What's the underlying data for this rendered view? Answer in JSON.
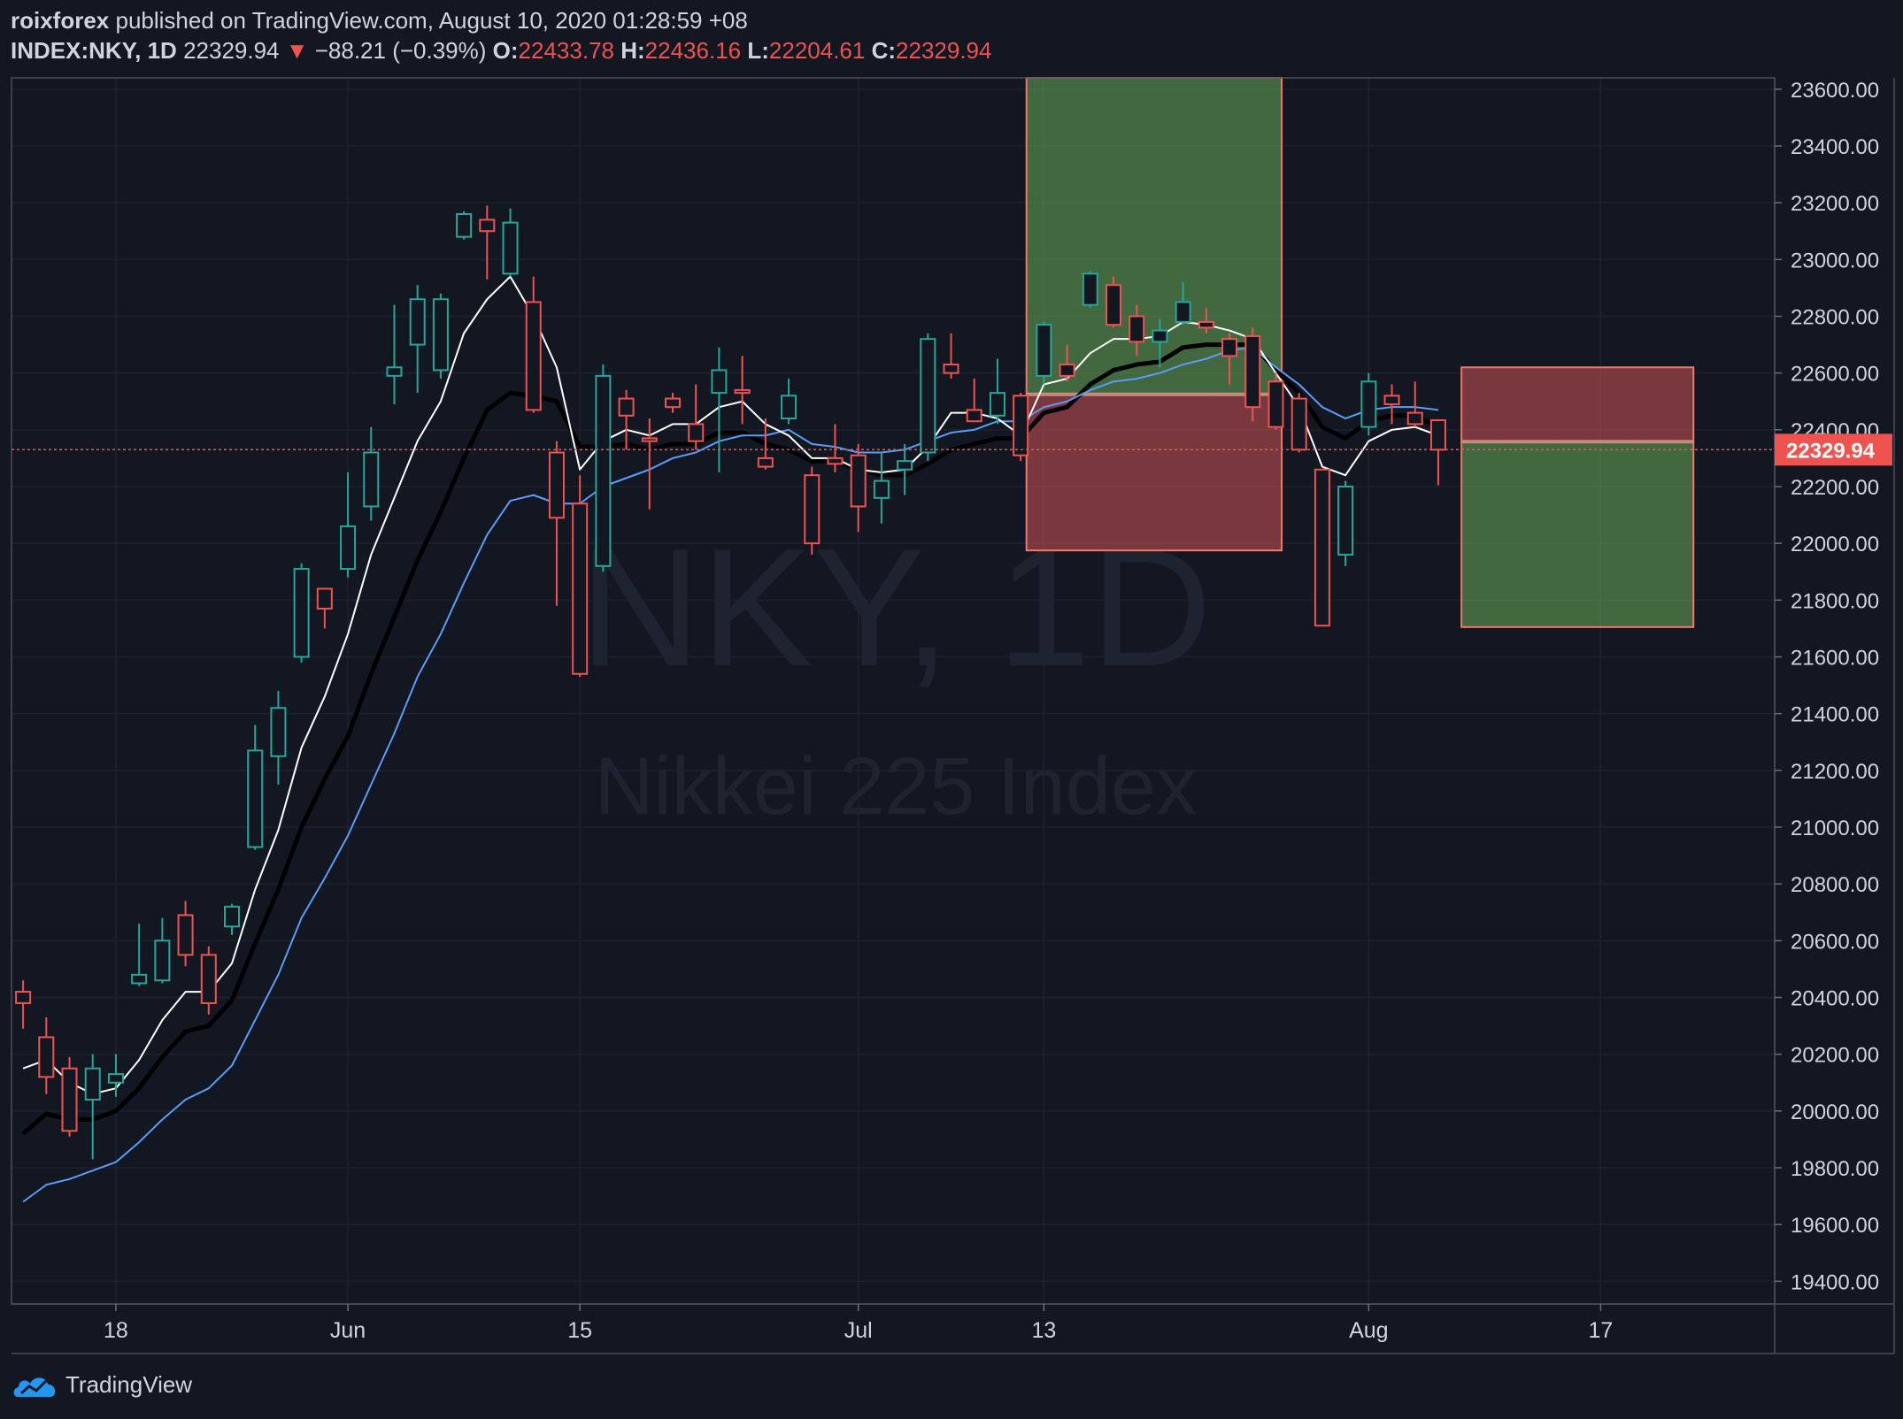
{
  "header": {
    "author": "roixforex",
    "published_text": "published on TradingView.com, August 10, 2020 01:28:59 +08",
    "symbol": "INDEX:NKY, 1D",
    "last_price": "22329.94",
    "down_arrow": "▼",
    "change": "−88.21 (−0.39%)",
    "o_label": "O:",
    "o_value": "22433.78",
    "h_label": "H:",
    "h_value": "22436.16",
    "l_label": "L:",
    "l_value": "22204.61",
    "c_label": "C:",
    "c_value": "22329.94"
  },
  "watermark": {
    "symbol": "NKY, 1D",
    "name": "Nikkei 225 Index"
  },
  "brand": "TradingView",
  "colors": {
    "up": "#26a69a",
    "down": "#ef5350",
    "ema_fast": "#ffffff",
    "ema_mid": "#000000",
    "ema_slow": "#5b9cf6",
    "position_profit": "#4caf50",
    "position_loss": "#ef5350"
  },
  "chart_data": {
    "type": "candlestick",
    "y_range": [
      19320,
      23640
    ],
    "y_ticks": [
      "23600.00",
      "23400.00",
      "23200.00",
      "23000.00",
      "22800.00",
      "22600.00",
      "22400.00",
      "22200.00",
      "22000.00",
      "21800.00",
      "21600.00",
      "21400.00",
      "21200.00",
      "21000.00",
      "20800.00",
      "20600.00",
      "20400.00",
      "20200.00",
      "20000.00",
      "19800.00",
      "19600.00",
      "19400.00"
    ],
    "x_ticks": [
      {
        "label": "18",
        "index": 4
      },
      {
        "label": "Jun",
        "index": 14
      },
      {
        "label": "15",
        "index": 24
      },
      {
        "label": "Jul",
        "index": 36
      },
      {
        "label": "13",
        "index": 44
      },
      {
        "label": "Aug",
        "index": 58
      },
      {
        "label": "17",
        "index": 68
      }
    ],
    "index_range": [
      -0.5,
      75.5
    ],
    "current_price": {
      "value": 22329.94,
      "label": "22329.94"
    },
    "candles": [
      {
        "o": 20420,
        "h": 20460,
        "l": 20290,
        "c": 20380
      },
      {
        "o": 20260,
        "h": 20330,
        "l": 20060,
        "c": 20120
      },
      {
        "o": 20150,
        "h": 20190,
        "l": 19910,
        "c": 19930
      },
      {
        "o": 20040,
        "h": 20200,
        "l": 19830,
        "c": 20150
      },
      {
        "o": 20100,
        "h": 20200,
        "l": 20050,
        "c": 20130
      },
      {
        "o": 20450,
        "h": 20660,
        "l": 20440,
        "c": 20480
      },
      {
        "o": 20460,
        "h": 20680,
        "l": 20450,
        "c": 20600
      },
      {
        "o": 20690,
        "h": 20740,
        "l": 20510,
        "c": 20550
      },
      {
        "o": 20550,
        "h": 20580,
        "l": 20340,
        "c": 20380
      },
      {
        "o": 20650,
        "h": 20730,
        "l": 20620,
        "c": 20720
      },
      {
        "o": 20930,
        "h": 21360,
        "l": 20920,
        "c": 21270
      },
      {
        "o": 21250,
        "h": 21480,
        "l": 21150,
        "c": 21420
      },
      {
        "o": 21600,
        "h": 21930,
        "l": 21580,
        "c": 21910
      },
      {
        "o": 21840,
        "h": 21800,
        "l": 21700,
        "c": 21770
      },
      {
        "o": 21910,
        "h": 22250,
        "l": 21880,
        "c": 22060
      },
      {
        "o": 22130,
        "h": 22410,
        "l": 22080,
        "c": 22320
      },
      {
        "o": 22590,
        "h": 22840,
        "l": 22490,
        "c": 22620
      },
      {
        "o": 22700,
        "h": 22910,
        "l": 22530,
        "c": 22860
      },
      {
        "o": 22610,
        "h": 22880,
        "l": 22580,
        "c": 22860
      },
      {
        "o": 23080,
        "h": 23170,
        "l": 23070,
        "c": 23160
      },
      {
        "o": 23140,
        "h": 23190,
        "l": 22930,
        "c": 23100
      },
      {
        "o": 22950,
        "h": 23180,
        "l": 22940,
        "c": 23130
      },
      {
        "o": 22850,
        "h": 22940,
        "l": 22460,
        "c": 22470
      },
      {
        "o": 22320,
        "h": 22360,
        "l": 21780,
        "c": 22090
      },
      {
        "o": 22140,
        "h": 22240,
        "l": 21530,
        "c": 21540
      },
      {
        "o": 21920,
        "h": 22630,
        "l": 21900,
        "c": 22590
      },
      {
        "o": 22510,
        "h": 22540,
        "l": 22330,
        "c": 22450
      },
      {
        "o": 22370,
        "h": 22440,
        "l": 22120,
        "c": 22360
      },
      {
        "o": 22510,
        "h": 22530,
        "l": 22460,
        "c": 22480
      },
      {
        "o": 22420,
        "h": 22560,
        "l": 22330,
        "c": 22360
      },
      {
        "o": 22530,
        "h": 22690,
        "l": 22250,
        "c": 22610
      },
      {
        "o": 22540,
        "h": 22660,
        "l": 22420,
        "c": 22530
      },
      {
        "o": 22300,
        "h": 22440,
        "l": 22260,
        "c": 22270
      },
      {
        "o": 22440,
        "h": 22580,
        "l": 22420,
        "c": 22520
      },
      {
        "o": 22240,
        "h": 22270,
        "l": 21960,
        "c": 22000
      },
      {
        "o": 22300,
        "h": 22420,
        "l": 22250,
        "c": 22280
      },
      {
        "o": 22310,
        "h": 22350,
        "l": 22040,
        "c": 22130
      },
      {
        "o": 22160,
        "h": 22320,
        "l": 22070,
        "c": 22220
      },
      {
        "o": 22260,
        "h": 22350,
        "l": 22170,
        "c": 22290
      },
      {
        "o": 22320,
        "h": 22740,
        "l": 22290,
        "c": 22720
      },
      {
        "o": 22630,
        "h": 22740,
        "l": 22580,
        "c": 22600
      },
      {
        "o": 22470,
        "h": 22580,
        "l": 22430,
        "c": 22430
      },
      {
        "o": 22450,
        "h": 22650,
        "l": 22420,
        "c": 22530
      },
      {
        "o": 22520,
        "h": 22530,
        "l": 22290,
        "c": 22310
      },
      {
        "o": 22590,
        "h": 22780,
        "l": 22560,
        "c": 22770
      },
      {
        "o": 22630,
        "h": 22700,
        "l": 22570,
        "c": 22590
      },
      {
        "o": 22840,
        "h": 22960,
        "l": 22830,
        "c": 22950
      },
      {
        "o": 22910,
        "h": 22940,
        "l": 22760,
        "c": 22770
      },
      {
        "o": 22800,
        "h": 22840,
        "l": 22660,
        "c": 22710
      },
      {
        "o": 22710,
        "h": 22790,
        "l": 22620,
        "c": 22750
      },
      {
        "o": 22780,
        "h": 22920,
        "l": 22770,
        "c": 22850
      },
      {
        "o": 22780,
        "h": 22830,
        "l": 22740,
        "c": 22760
      },
      {
        "o": 22720,
        "h": 22740,
        "l": 22560,
        "c": 22660
      },
      {
        "o": 22730,
        "h": 22760,
        "l": 22430,
        "c": 22480
      },
      {
        "o": 22570,
        "h": 22600,
        "l": 22400,
        "c": 22410
      },
      {
        "o": 22510,
        "h": 22530,
        "l": 22320,
        "c": 22330
      },
      {
        "o": 22260,
        "h": 22260,
        "l": 21710,
        "c": 21710
      },
      {
        "o": 21960,
        "h": 22220,
        "l": 21920,
        "c": 22200
      },
      {
        "o": 22410,
        "h": 22600,
        "l": 22380,
        "c": 22570
      },
      {
        "o": 22520,
        "h": 22560,
        "l": 22420,
        "c": 22490
      },
      {
        "o": 22460,
        "h": 22570,
        "l": 22410,
        "c": 22420
      },
      {
        "o": 22433.78,
        "h": 22436.16,
        "l": 22204.61,
        "c": 22329.94
      }
    ],
    "ema_fast": [
      20150,
      20180,
      20100,
      20060,
      20080,
      20180,
      20320,
      20420,
      20420,
      20520,
      20780,
      20990,
      21280,
      21460,
      21680,
      21960,
      22160,
      22360,
      22500,
      22740,
      22860,
      22940,
      22800,
      22620,
      22260,
      22360,
      22400,
      22380,
      22420,
      22420,
      22480,
      22500,
      22420,
      22380,
      22300,
      22300,
      22260,
      22250,
      22260,
      22340,
      22460,
      22460,
      22440,
      22380,
      22560,
      22580,
      22670,
      22720,
      22720,
      22730,
      22780,
      22770,
      22750,
      22720,
      22600,
      22480,
      22270,
      22240,
      22360,
      22400,
      22410,
      22380
    ],
    "ema_mid": [
      19920,
      19990,
      19970,
      19970,
      20000,
      20080,
      20190,
      20280,
      20300,
      20390,
      20590,
      20780,
      21000,
      21170,
      21320,
      21540,
      21740,
      21940,
      22110,
      22300,
      22470,
      22530,
      22520,
      22500,
      22340,
      22340,
      22350,
      22330,
      22350,
      22350,
      22390,
      22390,
      22350,
      22330,
      22290,
      22290,
      22260,
      22240,
      22240,
      22280,
      22330,
      22350,
      22370,
      22370,
      22460,
      22480,
      22560,
      22610,
      22630,
      22640,
      22690,
      22700,
      22700,
      22700,
      22610,
      22530,
      22410,
      22370,
      22430,
      22450,
      22450,
      22410
    ],
    "ema_slow": [
      19680,
      19740,
      19760,
      19790,
      19820,
      19890,
      19970,
      20040,
      20080,
      20160,
      20320,
      20480,
      20680,
      20820,
      20970,
      21150,
      21330,
      21530,
      21680,
      21860,
      22030,
      22150,
      22170,
      22140,
      22140,
      22200,
      22230,
      22260,
      22300,
      22320,
      22360,
      22380,
      22380,
      22400,
      22350,
      22340,
      22320,
      22320,
      22330,
      22360,
      22390,
      22400,
      22430,
      22430,
      22480,
      22500,
      22540,
      22570,
      22580,
      22600,
      22630,
      22650,
      22680,
      22690,
      22620,
      22560,
      22480,
      22440,
      22470,
      22480,
      22480,
      22470
    ]
  },
  "positions": [
    {
      "type": "long",
      "x_from": 43.25,
      "x_to": 54.25,
      "entry": 22525,
      "target": 23640,
      "stop": 21975
    },
    {
      "type": "short",
      "x_from": 62,
      "x_to": 72,
      "entry": 22358,
      "target": 21705,
      "stop": 22620
    }
  ]
}
